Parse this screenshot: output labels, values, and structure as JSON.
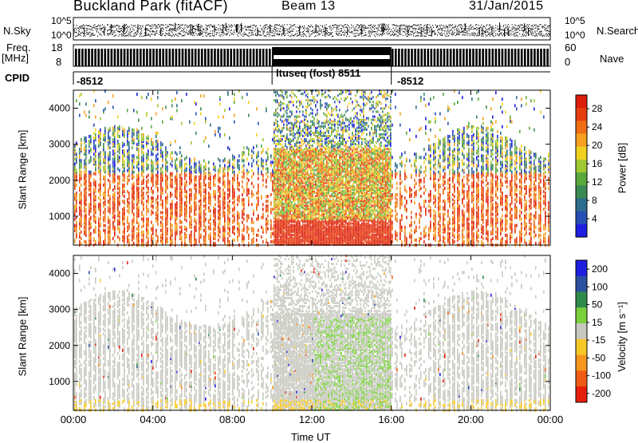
{
  "header": {
    "station": "Buckland Park (fitACF)",
    "beam": "Beam 13",
    "date": "31/Jan/2015"
  },
  "left_labels": {
    "nsky": "N.Sky",
    "freq": "Freq.",
    "mhz": "[MHz]",
    "cpid": "CPID"
  },
  "right_labels": {
    "nsearch": "N.Search",
    "nave": "Nave"
  },
  "top_axes": {
    "noise_ticks": [
      "10^5",
      "10^0"
    ],
    "noise_ticks_right": [
      "10^5",
      "10^0"
    ],
    "freq_ticks": [
      "18",
      "8"
    ],
    "nave_ticks": [
      "60",
      "0"
    ]
  },
  "cpid_segments": [
    {
      "label": "-8512",
      "start": 0,
      "end": 10
    },
    {
      "label": "ltuseq (fost) 8511",
      "start": 10,
      "end": 16
    },
    {
      "label": "-8512",
      "start": 16,
      "end": 24
    }
  ],
  "colors": {
    "power": [
      "#1e1ee0",
      "#2850b4",
      "#2c6e8c",
      "#3a8a52",
      "#5aa83c",
      "#a0c832",
      "#f0d21e",
      "#f5a01e",
      "#f06e14",
      "#e63c0f",
      "#dc1e0a"
    ],
    "velocity": [
      "#1e1ee0",
      "#2c50a0",
      "#2e8a4a",
      "#7ad03c",
      "#c8c8c0",
      "#f5c828",
      "#f5961e",
      "#f05a14",
      "#e61e0a"
    ]
  },
  "chart_data": [
    {
      "type": "heatmap",
      "name_of_field": "Power",
      "ylabel": "Slant Range [km]",
      "colorbar_label": "Power [dB]",
      "colorbar_ticks": [
        "4",
        "8",
        "12",
        "16",
        "20",
        "24",
        "28"
      ],
      "y_ticks": [
        "1000",
        "2000",
        "3000",
        "4000"
      ],
      "ylim": [
        200,
        4500
      ],
      "xlim": [
        0,
        24
      ]
    },
    {
      "type": "heatmap",
      "name_of_field": "Velocity",
      "ylabel": "Slant Range [km]",
      "colorbar_label": "Velocity [m s⁻¹]",
      "colorbar_ticks": [
        "200",
        "100",
        "50",
        "15",
        "-15",
        "-50",
        "-100",
        "-200"
      ],
      "y_ticks": [
        "1000",
        "2000",
        "3000",
        "4000"
      ],
      "ylim": [
        200,
        4500
      ],
      "xlim": [
        0,
        24
      ],
      "xlabel": "Time UT",
      "x_ticks": [
        "00:00",
        "04:00",
        "08:00",
        "12:00",
        "16:00",
        "20:00",
        "00:00"
      ]
    }
  ]
}
